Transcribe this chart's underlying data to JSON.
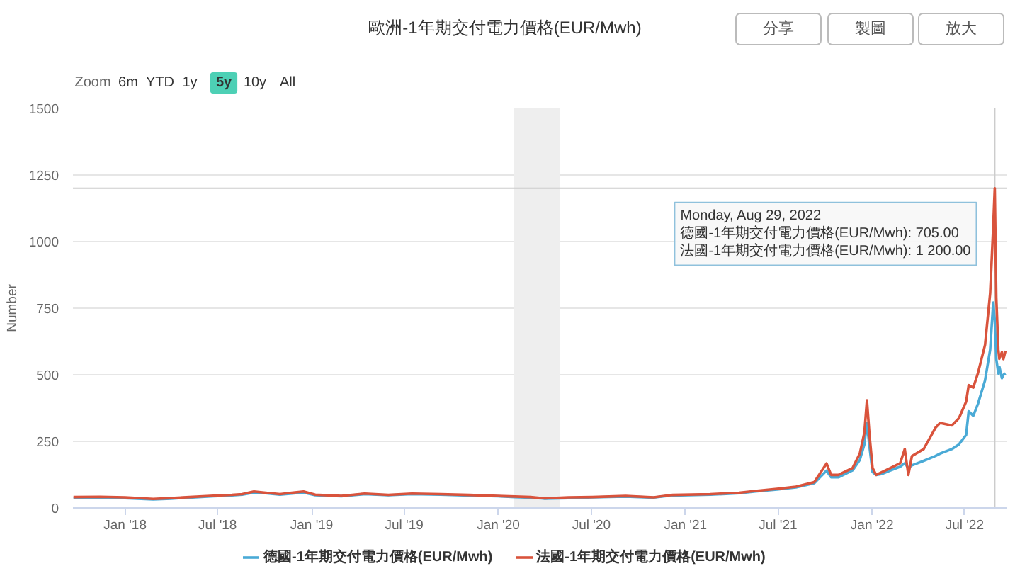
{
  "chart_data": {
    "type": "line",
    "title": "歐洲-1年期交付電力價格(EUR/Mwh)",
    "ylabel": "Number",
    "x": [
      "2017-09-22",
      "2017-11-13",
      "2018-01-01",
      "2018-02-25",
      "2018-04-01",
      "2018-05-07",
      "2018-06-23",
      "2018-07-29",
      "2018-08-18",
      "2018-09-10",
      "2018-10-03",
      "2018-10-31",
      "2018-11-23",
      "2018-12-16",
      "2019-01-08",
      "2019-02-28",
      "2019-04-15",
      "2019-05-31",
      "2019-07-16",
      "2019-09-10",
      "2019-11-05",
      "2019-12-31",
      "2020-02-02",
      "2020-03-04",
      "2020-04-01",
      "2020-05-17",
      "2020-07-03",
      "2020-09-06",
      "2020-10-31",
      "2020-12-07",
      "2021-02-19",
      "2021-04-16",
      "2021-05-18",
      "2021-06-29",
      "2021-08-05",
      "2021-09-10",
      "2021-10-04",
      "2021-10-13",
      "2021-10-27",
      "2021-11-24",
      "2021-12-08",
      "2021-12-17",
      "2021-12-22",
      "2021-12-27",
      "2022-01-02",
      "2022-01-09",
      "2022-01-19",
      "2022-02-06",
      "2022-02-25",
      "2022-03-06",
      "2022-03-13",
      "2022-03-20",
      "2022-04-12",
      "2022-05-05",
      "2022-05-14",
      "2022-06-06",
      "2022-06-20",
      "2022-07-04",
      "2022-07-09",
      "2022-07-18",
      "2022-07-27",
      "2022-08-10",
      "2022-08-20",
      "2022-08-26",
      "2022-08-29",
      "2022-09-01",
      "2022-09-05",
      "2022-09-07",
      "2022-09-12",
      "2022-09-15",
      "2022-09-19"
    ],
    "series": [
      {
        "name": "德國-1年期交付電力價格(EUR/Mwh)",
        "color": "#4aaad6",
        "values": [
          38,
          39,
          37,
          32,
          35,
          39,
          44,
          47,
          50,
          58,
          55,
          50,
          54,
          58,
          48,
          44,
          52,
          48,
          52,
          50,
          47,
          44,
          41,
          39,
          35,
          37,
          40,
          43,
          39,
          47,
          50,
          55,
          62,
          69,
          77,
          93,
          140,
          115,
          115,
          141,
          180,
          239,
          319,
          230,
          135,
          124,
          127,
          141,
          155,
          168,
          150,
          160,
          177,
          195,
          204,
          221,
          239,
          274,
          363,
          346,
          390,
          479,
          594,
          771,
          705,
          559,
          505,
          530,
          487,
          500,
          505
        ]
      },
      {
        "name": "法國-1年期交付電力價格(EUR/Mwh)",
        "color": "#d9533c",
        "values": [
          41,
          42,
          40,
          34,
          37,
          41,
          46,
          49,
          52,
          62,
          57,
          52,
          57,
          62,
          50,
          45,
          54,
          49,
          54,
          52,
          49,
          45,
          43,
          41,
          36,
          40,
          41,
          45,
          40,
          49,
          52,
          57,
          64,
          72,
          80,
          97,
          167,
          124,
          124,
          150,
          204,
          283,
          404,
          274,
          150,
          124,
          133,
          150,
          168,
          221,
          124,
          195,
          221,
          301,
          319,
          310,
          337,
          399,
          461,
          452,
          505,
          612,
          806,
          1055,
          1200,
          789,
          594,
          560,
          585,
          559,
          590
        ]
      }
    ],
    "xlim": [
      "2017-09-21",
      "2022-09-21"
    ],
    "xticks": [
      {
        "value": "2018-01-01",
        "label": "Jan '18"
      },
      {
        "value": "2018-07-01",
        "label": "Jul '18"
      },
      {
        "value": "2019-01-01",
        "label": "Jan '19"
      },
      {
        "value": "2019-07-01",
        "label": "Jul '19"
      },
      {
        "value": "2020-01-01",
        "label": "Jan '20"
      },
      {
        "value": "2020-07-01",
        "label": "Jul '20"
      },
      {
        "value": "2021-01-01",
        "label": "Jan '21"
      },
      {
        "value": "2021-07-01",
        "label": "Jul '21"
      },
      {
        "value": "2022-01-01",
        "label": "Jan '22"
      },
      {
        "value": "2022-07-01",
        "label": "Jul '22"
      }
    ],
    "ylim": [
      0,
      1500
    ],
    "yticks": [
      0,
      250,
      500,
      750,
      1000,
      1250,
      1500
    ],
    "grid": "y",
    "legend": "bottom",
    "line_style": "solid",
    "bands": [
      {
        "axis": "x",
        "from": "2020-02-01",
        "to": "2020-04-30",
        "color": "#eeeeee"
      }
    ],
    "ref_lines": [
      {
        "axis": "x",
        "value": "2022-08-29",
        "color": "#cccccc"
      },
      {
        "axis": "y",
        "value": 1200,
        "color": "#cccccc"
      }
    ],
    "annotations": [
      {
        "text": "Monday, Aug 29, 2022\n德國-1年期交付電力價格(EUR/Mwh): 705.00\n法國-1年期交付電力價格(EUR/Mwh): 1 200.00",
        "x": "2022-08-29",
        "y": 1200
      },
      "Zoom",
      "6m",
      "YTD",
      "1y",
      "5y",
      "10y",
      "All",
      "分享",
      "製圖",
      "放大"
    ]
  }
}
